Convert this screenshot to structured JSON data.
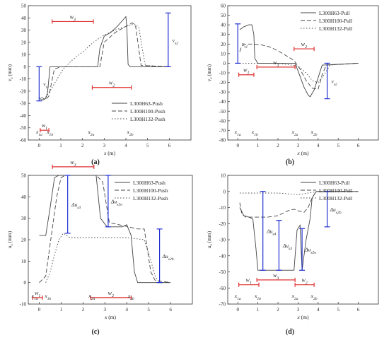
{
  "chart_data": [
    {
      "type": "line",
      "panel_label": "(a)",
      "xlabel": "x (m)",
      "ylabel": "vs (mm)",
      "xlim": [
        -0.5,
        7
      ],
      "ylim": [
        -60,
        50
      ],
      "xticks": [
        "0",
        "1",
        "2",
        "3",
        "4",
        "5",
        "6"
      ],
      "yticks": [
        "50",
        "40",
        "30",
        "20",
        "10",
        "0",
        "-10",
        "-20",
        "-30",
        "-40",
        "-50",
        "-60"
      ],
      "legend_position": "bottom-right",
      "series": [
        {
          "name": "L300H63-Push",
          "style": "solid",
          "x": [
            0,
            0.1,
            0.2,
            0.3,
            0.38,
            0.45,
            0.5,
            2.7,
            2.8,
            3.0,
            3.3,
            3.6,
            3.9,
            4.0,
            4.05,
            4.1,
            4.2,
            6.0
          ],
          "y": [
            -25,
            -27,
            -27,
            -26,
            -22,
            -10,
            0,
            0,
            15,
            25,
            28,
            33,
            39,
            41,
            30,
            2,
            0,
            0
          ]
        },
        {
          "name": "L300H100-Push",
          "style": "dashed",
          "x": [
            0.1,
            0.3,
            0.45,
            0.55,
            0.7,
            1.0,
            2.8,
            3.0,
            3.5,
            4.0,
            4.3,
            4.45,
            4.55,
            4.7,
            6.0
          ],
          "y": [
            -25,
            -27,
            -24,
            -15,
            -2,
            0,
            0,
            20,
            28,
            33,
            36,
            33,
            20,
            1,
            0
          ]
        },
        {
          "name": "L300H132-Push",
          "style": "dotted",
          "x": [
            0.3,
            0.5,
            0.7,
            0.9,
            1.1,
            1.5,
            2.0,
            2.5,
            3.0,
            3.5,
            4.0,
            4.4,
            4.6,
            4.75,
            4.9,
            6.0
          ],
          "y": [
            -25,
            -20,
            -14,
            -8,
            -2,
            5,
            12,
            20,
            26,
            30,
            33,
            35,
            32,
            15,
            1,
            0
          ]
        }
      ],
      "annotations": [
        {
          "text": "w3",
          "x1": 0.6,
          "x2": 2.5,
          "y": 37
        },
        {
          "text": "w2",
          "x1": 2.45,
          "x2": 4.25,
          "y": -17
        },
        {
          "text": "w1",
          "x1": 0.05,
          "x2": 0.45,
          "y": -52
        },
        {
          "text": "vs1",
          "x": 0,
          "y1": 0,
          "y2": -28
        },
        {
          "text": "vs2",
          "x": 5.95,
          "y1": 44,
          "y2": 0
        },
        {
          "text": "x1a",
          "x": 0
        },
        {
          "text": "x1b",
          "x": 0.5
        },
        {
          "text": "x2a",
          "x": 2.4
        },
        {
          "text": "x2b",
          "x": 4.2
        }
      ]
    },
    {
      "type": "line",
      "panel_label": "(b)",
      "xlabel": "x (m)",
      "ylabel": "vs (mm)",
      "xlim": [
        -0.5,
        7
      ],
      "ylim": [
        -80,
        60
      ],
      "xticks": [
        "0",
        "1",
        "2",
        "3",
        "4",
        "5",
        "6"
      ],
      "yticks": [
        "60",
        "50",
        "40",
        "30",
        "20",
        "10",
        "0",
        "-10",
        "-20",
        "-30",
        "-40",
        "-50",
        "-60",
        "-70",
        "-80"
      ],
      "legend_position": "top-right",
      "series": [
        {
          "name": "L300H63-Pull",
          "style": "solid",
          "x": [
            0.1,
            0.3,
            0.55,
            0.7,
            0.8,
            0.85,
            1.0,
            2.85,
            3.0,
            3.3,
            3.5,
            3.6,
            3.8,
            4.0,
            4.2,
            6.0
          ],
          "y": [
            35,
            38,
            40,
            40,
            30,
            5,
            0,
            0,
            -8,
            -25,
            -33,
            -35,
            -28,
            -15,
            -2,
            0
          ]
        },
        {
          "name": "L300H100-Pull",
          "style": "dashed",
          "x": [
            0.1,
            0.2,
            0.4,
            0.8,
            1.2,
            1.6,
            2.0,
            2.4,
            2.8,
            3.1,
            3.4,
            3.7,
            4.0,
            4.2,
            4.4,
            6.0
          ],
          "y": [
            12,
            18,
            20,
            20,
            19,
            17,
            13,
            8,
            3,
            -6,
            -18,
            -26,
            -27,
            -12,
            -2,
            0
          ]
        },
        {
          "name": "L300H132-Pull",
          "style": "dotted",
          "x": [
            0.1,
            0.5,
            1.0,
            2.0,
            3.0,
            3.4,
            3.7,
            4.0,
            4.3,
            4.6,
            6.0
          ],
          "y": [
            0,
            0,
            0,
            0,
            -3,
            -10,
            -18,
            -20,
            -12,
            -2,
            0
          ]
        }
      ],
      "annotations": [
        {
          "text": "w2",
          "x1": 2.8,
          "x2": 3.8,
          "y": 15
        },
        {
          "text": "w1",
          "x1": 0.05,
          "x2": 0.8,
          "y": -12
        },
        {
          "text": "w3",
          "x1": 0.95,
          "x2": 2.85,
          "y": -4
        },
        {
          "text": "vs1",
          "x": 0,
          "y1": 0,
          "y2": 41
        },
        {
          "text": "vs2",
          "x": 4.45,
          "y1": 0,
          "y2": -37
        },
        {
          "text": "x1a",
          "x": 0
        },
        {
          "text": "x1b",
          "x": 0.85
        },
        {
          "text": "x2a",
          "x": 2.85
        },
        {
          "text": "x2b",
          "x": 3.8
        }
      ]
    },
    {
      "type": "line",
      "panel_label": "(c)",
      "xlabel": "x (m)",
      "ylabel": "us (mm)",
      "xlim": [
        -0.5,
        7
      ],
      "ylim": [
        -10,
        50
      ],
      "xticks": [
        "0",
        "1",
        "2",
        "3",
        "4",
        "5",
        "6"
      ],
      "yticks": [
        "50",
        "40",
        "30",
        "20",
        "10",
        "0",
        "-10"
      ],
      "legend_position": "top-right",
      "series": [
        {
          "name": "L300H63-Push",
          "style": "solid",
          "x": [
            0,
            0.3,
            0.5,
            0.7,
            0.9,
            2.6,
            2.8,
            3.1,
            3.8,
            4.0,
            4.2,
            4.35,
            4.5,
            6.0
          ],
          "y": [
            22,
            22,
            35,
            49,
            50,
            50,
            30,
            26,
            26,
            27,
            22,
            5,
            0,
            0
          ]
        },
        {
          "name": "L300H100-Push",
          "style": "dashed",
          "x": [
            0,
            0.3,
            0.5,
            0.8,
            1.0,
            1.2,
            2.6,
            2.9,
            3.2,
            4.5,
            4.8,
            4.95,
            5.1,
            5.3,
            6.0
          ],
          "y": [
            0,
            3,
            18,
            40,
            49,
            50,
            50,
            47,
            28,
            25,
            25,
            15,
            5,
            1,
            0
          ]
        },
        {
          "name": "L300H132-Push",
          "style": "dotted",
          "x": [
            0.3,
            0.5,
            0.7,
            0.9,
            1.1,
            1.4,
            2.0,
            3.0,
            4.0,
            4.8,
            5.0,
            5.3,
            5.5,
            6.0
          ],
          "y": [
            0,
            5,
            13,
            20,
            23,
            21,
            21,
            21,
            21,
            20,
            14,
            3,
            0,
            0
          ]
        }
      ],
      "annotations": [
        {
          "text": "w3",
          "x1": 0.6,
          "x2": 2.5,
          "y": 54
        },
        {
          "text": "w2",
          "x1": 2.35,
          "x2": 4.2,
          "y": -7
        },
        {
          "text": "w1",
          "x1": -0.3,
          "x2": 0.15,
          "y": -7
        },
        {
          "text": "Δus3",
          "x": 1.3,
          "y1": 23,
          "y2": 50
        },
        {
          "text": "Δus2a",
          "x": 3.15,
          "y1": 26,
          "y2": 50
        },
        {
          "text": "Δus2b",
          "x": 5.5,
          "y1": 0,
          "y2": 25
        },
        {
          "text": "x1a",
          "x": -0.2
        },
        {
          "text": "x1b",
          "x": 0.4
        },
        {
          "text": "x2a",
          "x": 2.4
        },
        {
          "text": "x2b",
          "x": 4.2
        }
      ]
    },
    {
      "type": "line",
      "panel_label": "(d)",
      "xlabel": "x (m)",
      "ylabel": "us (mm)",
      "xlim": [
        -0.5,
        7
      ],
      "ylim": [
        -70,
        10
      ],
      "xticks": [
        "0",
        "1",
        "2",
        "3",
        "4",
        "5",
        "6"
      ],
      "yticks": [
        "10",
        "0",
        "-10",
        "-20",
        "-30",
        "-40",
        "-50",
        "-60",
        "-70"
      ],
      "legend_position": "top-right",
      "series": [
        {
          "name": "L300H63-Pull",
          "style": "solid",
          "x": [
            0.1,
            0.3,
            0.55,
            0.75,
            0.9,
            1.0,
            2.8,
            2.95,
            3.1,
            3.2,
            3.4,
            3.6,
            3.7,
            3.9,
            4.0,
            6.0
          ],
          "y": [
            -10,
            -15,
            -16,
            -17,
            -35,
            -49,
            -49,
            -24,
            -21,
            -49,
            -30,
            -17,
            -4,
            0,
            0,
            0
          ]
        },
        {
          "name": "L300H100-Pull",
          "style": "dashed",
          "x": [
            0.1,
            0.2,
            0.4,
            0.7,
            1.0,
            1.5,
            2.0,
            2.5,
            2.8,
            3.0,
            3.3,
            3.5,
            3.7,
            3.9,
            6.0
          ],
          "y": [
            -7,
            -14,
            -16,
            -16,
            -16,
            -16,
            -15,
            -12,
            -11,
            -12,
            -13,
            -10,
            -4,
            0,
            0
          ]
        },
        {
          "name": "L300H132-Pull",
          "style": "dotted",
          "x": [
            0.1,
            1.0,
            2.0,
            3.0,
            3.5,
            4.0,
            6.0
          ],
          "y": [
            -1,
            -1,
            -1,
            -2,
            -1,
            0,
            0
          ]
        }
      ],
      "annotations": [
        {
          "text": "w1",
          "x1": 0.05,
          "x2": 1.05,
          "y": -58
        },
        {
          "text": "w3",
          "x1": 0.95,
          "x2": 2.85,
          "y": -55
        },
        {
          "text": "w2",
          "x1": 2.85,
          "x2": 3.8,
          "y": -58
        },
        {
          "text": "Δus4",
          "x": 1.25,
          "y1": -49,
          "y2": 0
        },
        {
          "text": "Δus3",
          "x": 2.05,
          "y1": -49,
          "y2": -18
        },
        {
          "text": "Δus2a",
          "x": 3.2,
          "y1": -49,
          "y2": -23
        },
        {
          "text": "Δus2b",
          "x": 4.45,
          "y1": -22,
          "y2": 0
        },
        {
          "text": "x1a",
          "x": 0
        },
        {
          "text": "x1b",
          "x": 1.0
        },
        {
          "text": "x2a",
          "x": 2.85
        },
        {
          "text": "x2b",
          "x": 3.8
        }
      ]
    }
  ]
}
